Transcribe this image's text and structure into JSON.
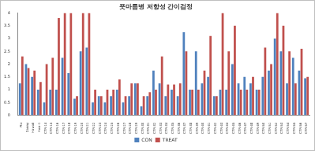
{
  "chart_data": {
    "type": "bar",
    "title": "풋마름병 저항성 간이검정",
    "categories": [
      "Pto",
      "Danny",
      "Hawaii",
      "Hwa-1",
      "CTR-14",
      "CTR-15",
      "CTR-16",
      "CTR-17",
      "CTR-18",
      "CTR-19",
      "CTR-20",
      "CTR-21",
      "CTR-22",
      "CTR-23",
      "CTR-24",
      "CTR-25",
      "CTR-26",
      "CTR-27",
      "CTR-28",
      "CTR-29",
      "CTR-30",
      "CTR-31",
      "CTR-32",
      "CTR-33",
      "CTR-34",
      "CTR-35",
      "CTR-36",
      "CTR-37",
      "CTR-38",
      "CTR-39",
      "CTR-40",
      "CTR-41",
      "CTR-42",
      "CTR-43",
      "CTR-44",
      "CTR-45",
      "CTR-46",
      "CTR-47",
      "CTR-48",
      "CTR-49",
      "CTR-50",
      "CTR-51",
      "CTR-52",
      "CTR-53",
      "CTR-54",
      "CTR-55",
      "CTR-56",
      "CTR-57"
    ],
    "series": [
      {
        "name": "CON",
        "color": "#4f81bd",
        "values": [
          1.25,
          2.0,
          1.5,
          1.0,
          0.5,
          1.0,
          1.0,
          2.25,
          1.65,
          0.65,
          2.5,
          2.65,
          0.5,
          0.75,
          0.5,
          0.75,
          1.0,
          0.5,
          0.75,
          1.25,
          0.35,
          0.75,
          1.75,
          1.25,
          0.75,
          1.0,
          0.75,
          3.25,
          1.0,
          2.5,
          1.25,
          1.5,
          0.75,
          1.0,
          1.0,
          2.0,
          1.25,
          1.5,
          1.25,
          1.0,
          1.5,
          1.75,
          3.0,
          2.5,
          1.25,
          2.25,
          1.75,
          1.45
        ]
      },
      {
        "name": "TREAT",
        "color": "#c0504d",
        "values": [
          2.3,
          1.85,
          1.75,
          1.3,
          2.0,
          2.25,
          3.8,
          4.0,
          4.0,
          0.75,
          4.0,
          4.0,
          1.0,
          0.75,
          1.0,
          1.0,
          1.4,
          0.75,
          1.25,
          1.25,
          0.75,
          0.9,
          1.0,
          2.3,
          1.2,
          1.2,
          1.25,
          2.5,
          1.0,
          1.0,
          1.75,
          3.1,
          0.75,
          4.0,
          2.5,
          3.5,
          1.0,
          1.0,
          1.5,
          1.0,
          2.65,
          2.0,
          4.0,
          3.5,
          2.5,
          1.25,
          2.6,
          1.5
        ]
      }
    ],
    "ylim": [
      0,
      4
    ],
    "yticks": [
      0,
      0.5,
      1,
      1.5,
      2,
      2.5,
      3,
      3.5,
      4
    ],
    "grid": false,
    "legend": "bottom"
  }
}
